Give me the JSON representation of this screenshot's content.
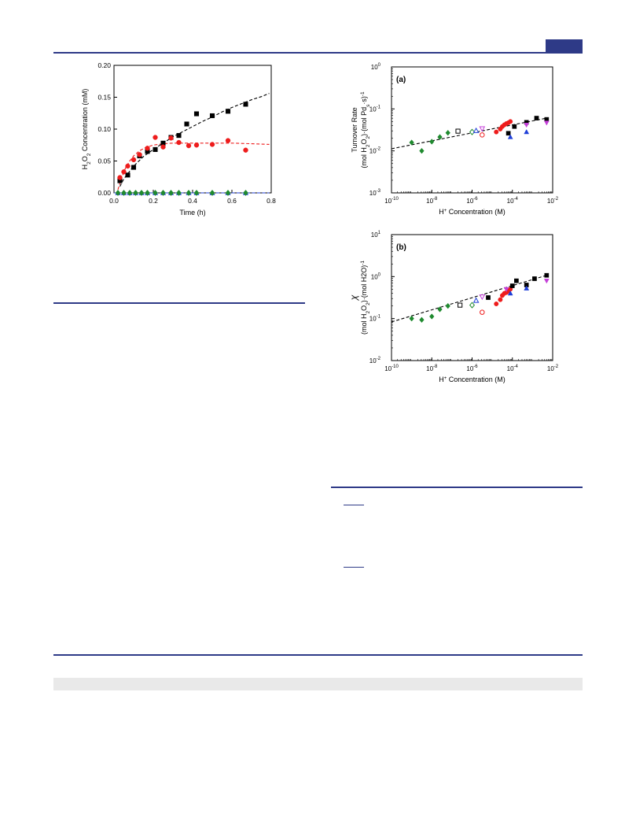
{
  "page": {
    "header_rule_color": "#2e3a87",
    "band_color": "#e9e9e9"
  },
  "chart_data": [
    {
      "id": "left",
      "type": "scatter",
      "title": "",
      "xlabel": "Time (h)",
      "ylabel_parts": [
        "H",
        "2",
        "O",
        "2",
        " Concentration (mM)"
      ],
      "xlim": [
        0,
        0.8
      ],
      "ylim": [
        0,
        0.2
      ],
      "xticks": [
        0.0,
        0.2,
        0.4,
        0.6,
        0.8
      ],
      "yticks": [
        0.0,
        0.05,
        0.1,
        0.15,
        0.2
      ],
      "xtick_labels": [
        "0.0",
        "0.2",
        "0.4",
        "0.6",
        "0.8"
      ],
      "ytick_labels": [
        "0.00",
        "0.05",
        "0.10",
        "0.15",
        "0.20"
      ],
      "series": [
        {
          "marker": "square",
          "color": "#000000",
          "x": [
            0.03,
            0.07,
            0.1,
            0.13,
            0.17,
            0.21,
            0.25,
            0.29,
            0.33,
            0.37,
            0.42,
            0.5,
            0.58,
            0.67
          ],
          "y": [
            0.019,
            0.028,
            0.04,
            0.058,
            0.065,
            0.068,
            0.078,
            0.087,
            0.09,
            0.108,
            0.124,
            0.121,
            0.128,
            0.139
          ]
        },
        {
          "marker": "circle",
          "color": "#ee1c1c",
          "x": [
            0.03,
            0.05,
            0.07,
            0.1,
            0.13,
            0.17,
            0.21,
            0.25,
            0.29,
            0.33,
            0.38,
            0.42,
            0.5,
            0.58,
            0.67
          ],
          "y": [
            0.024,
            0.033,
            0.042,
            0.052,
            0.06,
            0.07,
            0.087,
            0.072,
            0.086,
            0.079,
            0.074,
            0.075,
            0.076,
            0.082,
            0.067
          ]
        },
        {
          "marker": "triangle",
          "color": "#1f3fd8",
          "x": [
            0.02,
            0.05,
            0.08,
            0.11,
            0.14,
            0.17,
            0.21,
            0.25,
            0.29,
            0.33,
            0.38,
            0.42,
            0.5,
            0.58,
            0.67
          ],
          "y": [
            0,
            0,
            0,
            0,
            0,
            0,
            0,
            0,
            0,
            0,
            0,
            0,
            0,
            0,
            0
          ]
        },
        {
          "marker": "diamond",
          "color": "#1f8a2f",
          "x": [
            0.02,
            0.05,
            0.08,
            0.11,
            0.14,
            0.17,
            0.21,
            0.25,
            0.29,
            0.33,
            0.38,
            0.42,
            0.5,
            0.58,
            0.67
          ],
          "y": [
            0,
            0,
            0,
            0,
            0,
            0,
            0,
            0,
            0,
            0,
            0,
            0,
            0,
            0,
            0
          ]
        }
      ],
      "fits": [
        {
          "color": "#000000",
          "x": [
            0.03,
            0.05,
            0.1,
            0.15,
            0.2,
            0.25,
            0.3,
            0.35,
            0.4,
            0.45,
            0.5,
            0.55,
            0.6,
            0.65,
            0.7,
            0.75,
            0.79
          ],
          "y": [
            0.01,
            0.022,
            0.042,
            0.057,
            0.068,
            0.078,
            0.088,
            0.096,
            0.104,
            0.112,
            0.119,
            0.127,
            0.134,
            0.14,
            0.146,
            0.151,
            0.156
          ]
        },
        {
          "color": "#ee1c1c",
          "x": [
            0.02,
            0.04,
            0.06,
            0.08,
            0.1,
            0.13,
            0.16,
            0.2,
            0.25,
            0.3,
            0.4,
            0.5,
            0.6,
            0.7,
            0.79
          ],
          "y": [
            0.005,
            0.025,
            0.04,
            0.05,
            0.058,
            0.066,
            0.071,
            0.075,
            0.077,
            0.078,
            0.078,
            0.078,
            0.078,
            0.077,
            0.076
          ]
        },
        {
          "color": "#1f3fd8",
          "x": [
            0.0,
            0.79
          ],
          "y": [
            0.0,
            0.0
          ]
        }
      ]
    },
    {
      "id": "a",
      "type": "scatter",
      "log": true,
      "panel_label": "(a)",
      "xlabel_parts": [
        "H",
        "+",
        " Concentration (M)"
      ],
      "ylabel_lines": [
        [
          "Turnover Rate"
        ],
        [
          "(mol H",
          "2",
          "O",
          "2",
          ")·(mol Pd",
          "s",
          "·s)",
          "-1"
        ]
      ],
      "xlim": [
        -10,
        -2
      ],
      "ylim": [
        -3,
        0
      ],
      "xtick_exps": [
        "-10",
        "-8",
        "-6",
        "-4",
        "-2"
      ],
      "ytick_exps": [
        "-3",
        "-2",
        "-1",
        "0"
      ],
      "series": [
        {
          "marker": "diamond",
          "color": "#1f8a2f",
          "filled": true,
          "x": [
            -9.0,
            -8.5,
            -8.0,
            -7.6,
            -7.2
          ],
          "y": [
            -1.8,
            -2.0,
            -1.78,
            -1.67,
            -1.57
          ]
        },
        {
          "marker": "square",
          "color": "#000000",
          "filled": false,
          "x": [
            -6.7
          ],
          "y": [
            -1.53
          ]
        },
        {
          "marker": "diamond",
          "color": "#1f8a2f",
          "filled": false,
          "x": [
            -6.0
          ],
          "y": [
            -1.55
          ]
        },
        {
          "marker": "triangle",
          "color": "#1f3fd8",
          "filled": false,
          "x": [
            -5.8
          ],
          "y": [
            -1.52
          ]
        },
        {
          "marker": "circle",
          "color": "#ee1c1c",
          "filled": false,
          "x": [
            -5.5
          ],
          "y": [
            -1.62
          ]
        },
        {
          "marker": "invtriangle",
          "color": "#c43fd8",
          "filled": false,
          "x": [
            -5.5
          ],
          "y": [
            -1.47
          ]
        },
        {
          "marker": "circle",
          "color": "#ee1c1c",
          "filled": true,
          "x": [
            -4.8,
            -4.6,
            -4.5,
            -4.4,
            -4.3,
            -4.2,
            -4.1
          ],
          "y": [
            -1.55,
            -1.48,
            -1.42,
            -1.38,
            -1.35,
            -1.33,
            -1.3
          ]
        },
        {
          "marker": "square",
          "color": "#000000",
          "filled": true,
          "x": [
            -4.2,
            -3.9,
            -3.3,
            -2.8,
            -2.3
          ],
          "y": [
            -1.58,
            -1.42,
            -1.32,
            -1.22,
            -1.25
          ]
        },
        {
          "marker": "triangle",
          "color": "#1f3fd8",
          "filled": true,
          "x": [
            -4.1,
            -3.3
          ],
          "y": [
            -1.67,
            -1.55
          ]
        },
        {
          "marker": "invtriangle",
          "color": "#c43fd8",
          "filled": true,
          "x": [
            -3.3,
            -2.3
          ],
          "y": [
            -1.38,
            -1.33
          ]
        }
      ],
      "fit": {
        "x": [
          -10,
          -2.3
        ],
        "y": [
          -1.95,
          -1.22
        ]
      }
    },
    {
      "id": "b",
      "type": "scatter",
      "log": true,
      "panel_label": "(b)",
      "xlabel_parts": [
        "H",
        "+",
        " Concentration (M)"
      ],
      "ylabel_lines": [
        [
          "χ"
        ],
        [
          "(mol H",
          "2",
          "O",
          "2",
          ")·(mol H",
          "2",
          "O)",
          "-1"
        ]
      ],
      "xlim": [
        -10,
        -2
      ],
      "ylim": [
        -2,
        1
      ],
      "xtick_exps": [
        "-10",
        "-8",
        "-6",
        "-4",
        "-2"
      ],
      "ytick_exps": [
        "-2",
        "-1",
        "0",
        "1"
      ],
      "series": [
        {
          "marker": "diamond",
          "color": "#1f8a2f",
          "filled": true,
          "x": [
            -9.0,
            -8.5,
            -8.0,
            -7.6,
            -7.2
          ],
          "y": [
            -1.0,
            -1.03,
            -0.95,
            -0.78,
            -0.7
          ]
        },
        {
          "marker": "square",
          "color": "#000000",
          "filled": false,
          "x": [
            -6.6
          ],
          "y": [
            -0.68
          ]
        },
        {
          "marker": "diamond",
          "color": "#1f8a2f",
          "filled": false,
          "x": [
            -6.0
          ],
          "y": [
            -0.68
          ]
        },
        {
          "marker": "triangle",
          "color": "#1f3fd8",
          "filled": false,
          "x": [
            -5.8
          ],
          "y": [
            -0.57
          ]
        },
        {
          "marker": "circle",
          "color": "#ee1c1c",
          "filled": false,
          "x": [
            -5.5
          ],
          "y": [
            -0.85
          ]
        },
        {
          "marker": "invtriangle",
          "color": "#c43fd8",
          "filled": false,
          "x": [
            -5.5
          ],
          "y": [
            -0.48
          ]
        },
        {
          "marker": "circle",
          "color": "#ee1c1c",
          "filled": true,
          "x": [
            -4.8,
            -4.6,
            -4.5,
            -4.4,
            -4.3,
            -4.2,
            -4.1
          ],
          "y": [
            -0.65,
            -0.55,
            -0.45,
            -0.4,
            -0.38,
            -0.35,
            -0.3
          ]
        },
        {
          "marker": "square",
          "color": "#000000",
          "filled": true,
          "x": [
            -5.2,
            -4.0,
            -3.8,
            -3.3,
            -2.9,
            -2.3
          ],
          "y": [
            -0.5,
            -0.22,
            -0.1,
            -0.2,
            -0.05,
            0.03
          ]
        },
        {
          "marker": "triangle",
          "color": "#1f3fd8",
          "filled": true,
          "x": [
            -4.1,
            -3.3
          ],
          "y": [
            -0.4,
            -0.28
          ]
        },
        {
          "marker": "invtriangle",
          "color": "#c43fd8",
          "filled": true,
          "x": [
            -4.3,
            -2.3
          ],
          "y": [
            -0.3,
            -0.1
          ]
        }
      ],
      "fit": {
        "x": [
          -10,
          -2.3
        ],
        "y": [
          -1.08,
          0.03
        ]
      }
    }
  ]
}
